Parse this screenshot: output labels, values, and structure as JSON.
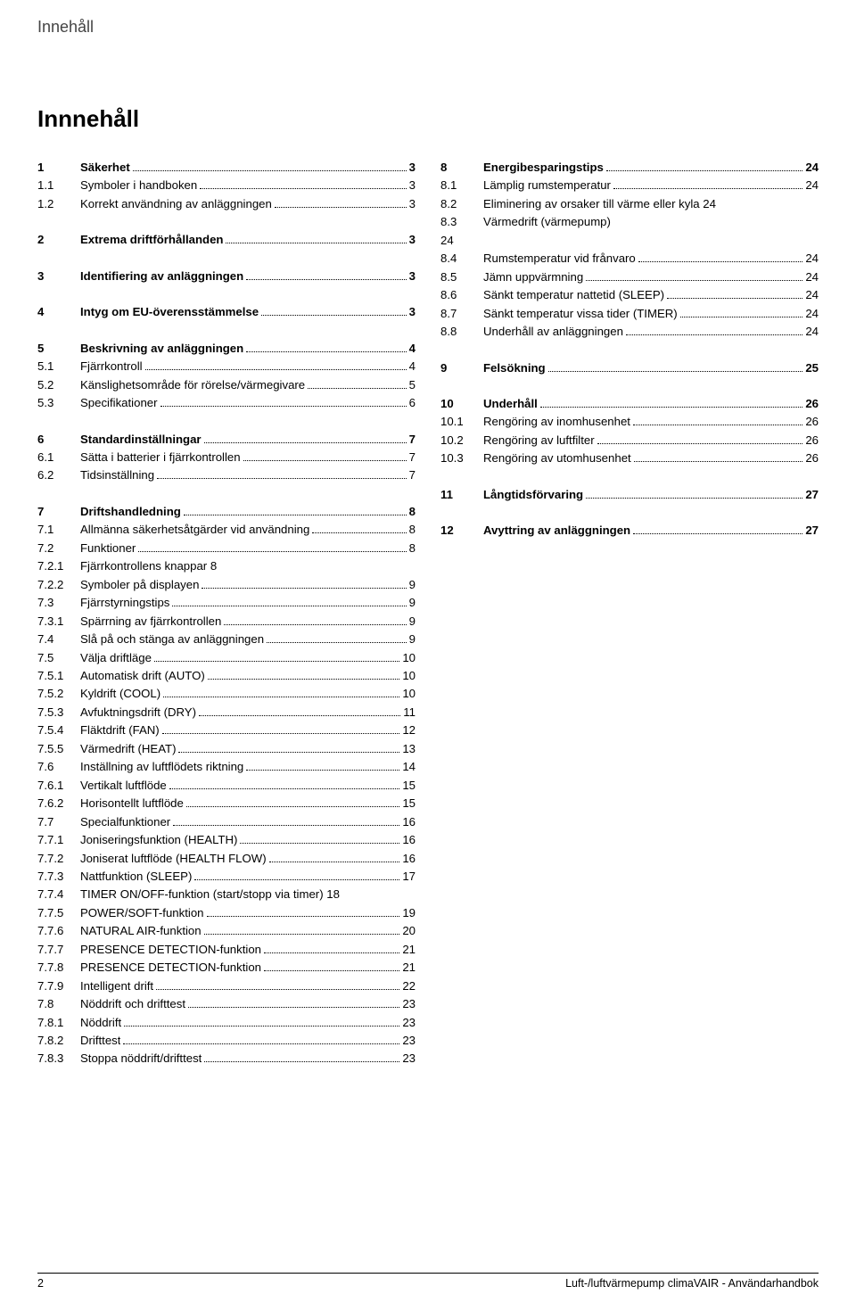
{
  "running_head": "Innehåll",
  "title": "Innnehåll",
  "footer": {
    "page": "2",
    "text": "Luft-/luftvärmepump climaVAIR - Användarhandbok"
  },
  "left": [
    {
      "num": "1",
      "title": "Säkerhet",
      "page": "3",
      "bold": true
    },
    {
      "num": "1.1",
      "title": "Symboler i handboken",
      "page": "3"
    },
    {
      "num": "1.2",
      "title": "Korrekt användning av anläggningen",
      "page": "3"
    },
    {
      "spacer": true
    },
    {
      "num": "2",
      "title": "Extrema driftförhållanden",
      "page": "3",
      "bold": true
    },
    {
      "spacer": true
    },
    {
      "num": "3",
      "title": "Identifiering av anläggningen",
      "page": "3",
      "bold": true
    },
    {
      "spacer": true
    },
    {
      "num": "4",
      "title": "Intyg om EU-överensstämmelse",
      "page": "3",
      "bold": true
    },
    {
      "spacer": true
    },
    {
      "num": "5",
      "title": "Beskrivning av anläggningen",
      "page": "4",
      "bold": true
    },
    {
      "num": "5.1",
      "title": "Fjärrkontroll",
      "page": "4"
    },
    {
      "num": "5.2",
      "title": "Känslighetsområde för rörelse/värmegivare",
      "page": "5"
    },
    {
      "num": "5.3",
      "title": "Specifikationer",
      "page": "6"
    },
    {
      "spacer": true
    },
    {
      "num": "6",
      "title": "Standardinställningar",
      "page": "7",
      "bold": true
    },
    {
      "num": "6.1",
      "title": "Sätta i batterier i fjärrkontrollen",
      "page": "7"
    },
    {
      "num": "6.2",
      "title": "Tidsinställning",
      "page": "7"
    },
    {
      "spacer": true
    },
    {
      "num": "7",
      "title": "Driftshandledning",
      "page": "8",
      "bold": true
    },
    {
      "num": "7.1",
      "title": "Allmänna säkerhetsåtgärder vid användning",
      "page": "8"
    },
    {
      "num": "7.2",
      "title": "Funktioner",
      "page": "8"
    },
    {
      "num": "7.2.1",
      "title": "Fjärrkontrollens knappar 8",
      "page": ""
    },
    {
      "num": "7.2.2",
      "title": "Symboler på displayen",
      "page": "9"
    },
    {
      "num": "7.3",
      "title": "Fjärrstyrningstips",
      "page": "9"
    },
    {
      "num": "7.3.1",
      "title": "Spärrning av fjärrkontrollen",
      "page": "9"
    },
    {
      "num": "7.4",
      "title": "Slå på och stänga av anläggningen",
      "page": "9"
    },
    {
      "num": "7.5",
      "title": "Välja driftläge",
      "page": "10"
    },
    {
      "num": "7.5.1",
      "title": "Automatisk drift (AUTO)",
      "page": "10"
    },
    {
      "num": "7.5.2",
      "title": "Kyldrift (COOL)",
      "page": "10"
    },
    {
      "num": "7.5.3",
      "title": "Avfuktningsdrift (DRY)",
      "page": "11"
    },
    {
      "num": "7.5.4",
      "title": "Fläktdrift (FAN)",
      "page": "12"
    },
    {
      "num": "7.5.5",
      "title": "Värmedrift (HEAT)",
      "page": "13"
    },
    {
      "num": "7.6",
      "title": "Inställning av luftflödets riktning",
      "page": "14"
    },
    {
      "num": "7.6.1",
      "title": "Vertikalt luftflöde",
      "page": "15"
    },
    {
      "num": "7.6.2",
      "title": "Horisontellt luftflöde",
      "page": "15"
    },
    {
      "num": "7.7",
      "title": "Specialfunktioner",
      "page": "16"
    },
    {
      "num": "7.7.1",
      "title": "Joniseringsfunktion (HEALTH)",
      "page": "16"
    },
    {
      "num": "7.7.2",
      "title": "Joniserat luftflöde (HEALTH FLOW)",
      "page": "16"
    },
    {
      "num": "7.7.3",
      "title": "Nattfunktion (SLEEP)",
      "page": "17"
    },
    {
      "num": "7.7.4",
      "title": "TIMER ON/OFF-funktion (start/stopp via timer) 18",
      "page": ""
    },
    {
      "num": "7.7.5",
      "title": "POWER/SOFT-funktion",
      "page": "19"
    },
    {
      "num": "7.7.6",
      "title": "NATURAL AIR-funktion",
      "page": "20"
    },
    {
      "num": "7.7.7",
      "title": "PRESENCE DETECTION-funktion",
      "page": "21"
    },
    {
      "num": "7.7.8",
      "title": "PRESENCE DETECTION-funktion",
      "page": "21"
    },
    {
      "num": "7.7.9",
      "title": "Intelligent drift",
      "page": "22"
    },
    {
      "num": "7.8",
      "title": "Nöddrift och drifttest",
      "page": "23"
    },
    {
      "num": "7.8.1",
      "title": "Nöddrift",
      "page": "23"
    },
    {
      "num": "7.8.2",
      "title": "Drifttest",
      "page": "23"
    },
    {
      "num": "7.8.3",
      "title": "Stoppa nöddrift/drifttest",
      "page": "23"
    }
  ],
  "right": [
    {
      "num": "8",
      "title": "Energibesparingstips",
      "page": "24",
      "bold": true
    },
    {
      "num": "8.1",
      "title": "Lämplig rumstemperatur",
      "page": "24"
    },
    {
      "num": "8.2",
      "title": "Eliminering av orsaker till värme eller kyla 24",
      "page": ""
    },
    {
      "num": "8.3",
      "title": "Värmedrift (värmepump)",
      "page": ""
    },
    {
      "num": "24",
      "title": "",
      "page": ""
    },
    {
      "num": "8.4",
      "title": "Rumstemperatur vid frånvaro",
      "page": "24"
    },
    {
      "num": "8.5",
      "title": "Jämn uppvärmning",
      "page": "24"
    },
    {
      "num": "8.6",
      "title": "Sänkt temperatur nattetid (SLEEP)",
      "page": "24"
    },
    {
      "num": "8.7",
      "title": "Sänkt temperatur vissa tider (TIMER)",
      "page": "24"
    },
    {
      "num": "8.8",
      "title": "Underhåll av anläggningen",
      "page": "24"
    },
    {
      "spacer": true
    },
    {
      "num": "9",
      "title": "Felsökning",
      "page": "25",
      "bold": true
    },
    {
      "spacer": true
    },
    {
      "num": "10",
      "title": "Underhåll",
      "page": "26",
      "bold": true
    },
    {
      "num": "10.1",
      "title": "Rengöring av inomhusenhet",
      "page": "26"
    },
    {
      "num": "10.2",
      "title": "Rengöring av luftfilter",
      "page": "26"
    },
    {
      "num": "10.3",
      "title": "Rengöring av utomhusenhet",
      "page": "26"
    },
    {
      "spacer": true
    },
    {
      "num": "11",
      "title": "Långtidsförvaring",
      "page": "27",
      "bold": true
    },
    {
      "spacer": true
    },
    {
      "num": "12",
      "title": "Avyttring av anläggningen",
      "page": "27",
      "bold": true
    }
  ]
}
